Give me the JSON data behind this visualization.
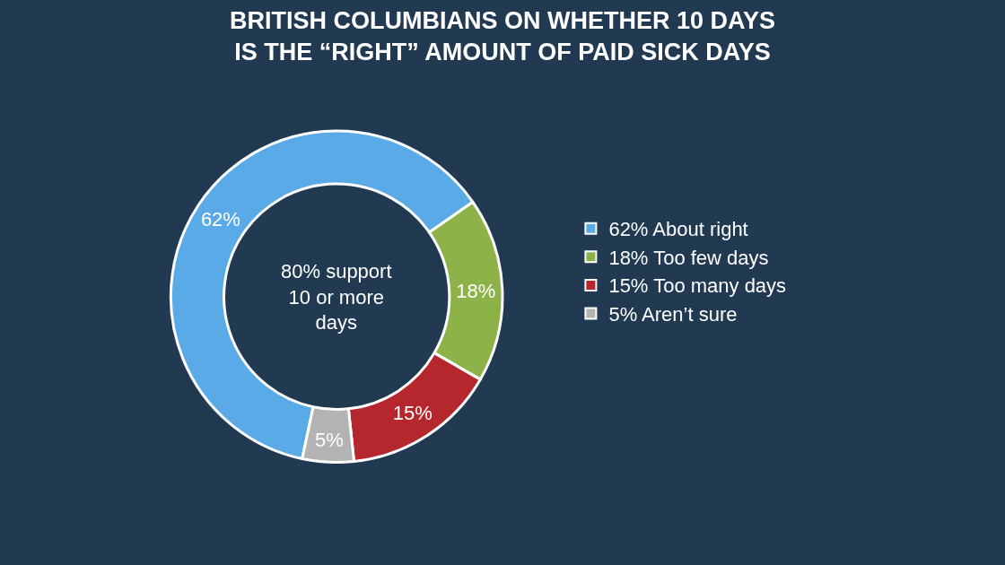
{
  "chart_data": {
    "type": "donut",
    "title": "BRITISH COLUMBIANS ON WHETHER 10 DAYS\nIS THE “RIGHT” AMOUNT OF PAID SICK DAYS",
    "categories": [
      "62% About right",
      "18% Too few days",
      "15% Too many days",
      "5% Aren’t sure"
    ],
    "values": [
      62,
      18,
      15,
      5
    ],
    "value_labels": [
      "62%",
      "18%",
      "15%",
      "5%"
    ],
    "colors": [
      "#5aaae7",
      "#8db248",
      "#b6272d",
      "#b3b3b3"
    ],
    "annotations": [
      "80% support\n10 or more\ndays"
    ],
    "legend": "right"
  }
}
